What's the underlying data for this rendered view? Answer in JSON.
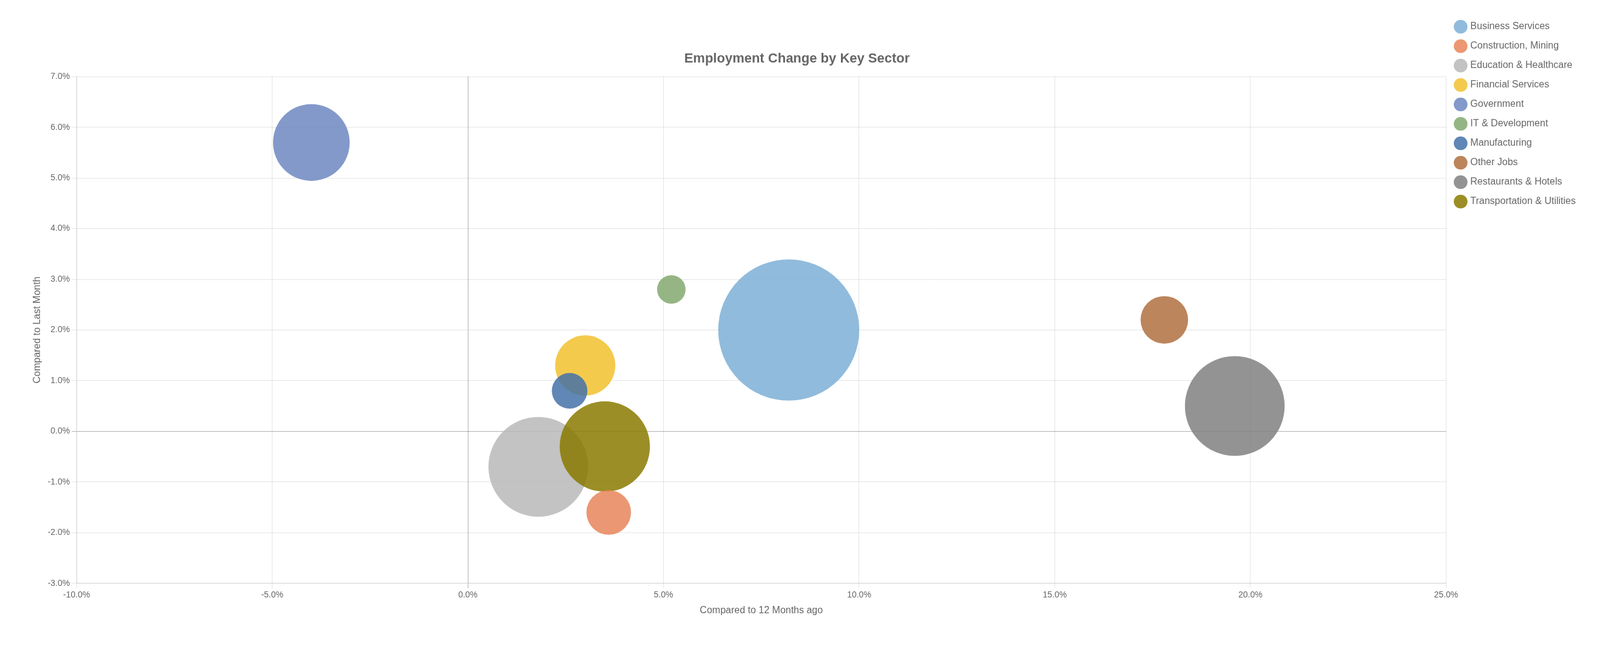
{
  "chart_data": {
    "type": "bubble",
    "title": "Employment Change by Key Sector",
    "xlabel": "Compared to 12 Months ago",
    "ylabel": "Compared to Last Month",
    "xlim": [
      -0.1,
      0.25
    ],
    "ylim": [
      -0.03,
      0.07
    ],
    "xticks": [
      {
        "value": -0.1,
        "label": "-10.0%"
      },
      {
        "value": -0.05,
        "label": "-5.0%"
      },
      {
        "value": 0.0,
        "label": "0.0%"
      },
      {
        "value": 0.05,
        "label": "5.0%"
      },
      {
        "value": 0.1,
        "label": "10.0%"
      },
      {
        "value": 0.15,
        "label": "15.0%"
      },
      {
        "value": 0.2,
        "label": "20.0%"
      },
      {
        "value": 0.25,
        "label": "25.0%"
      }
    ],
    "yticks": [
      {
        "value": -0.03,
        "label": "-3.0%"
      },
      {
        "value": -0.02,
        "label": "-2.0%"
      },
      {
        "value": -0.01,
        "label": "-1.0%"
      },
      {
        "value": 0.0,
        "label": "0.0%"
      },
      {
        "value": 0.01,
        "label": "1.0%"
      },
      {
        "value": 0.02,
        "label": "2.0%"
      },
      {
        "value": 0.03,
        "label": "3.0%"
      },
      {
        "value": 0.04,
        "label": "4.0%"
      },
      {
        "value": 0.05,
        "label": "5.0%"
      },
      {
        "value": 0.06,
        "label": "6.0%"
      },
      {
        "value": 0.07,
        "label": "7.0%"
      }
    ],
    "grid": true,
    "legend": "right",
    "series": [
      {
        "name": "Business Services",
        "color": "#7cafd6",
        "x": [
          0.082
        ],
        "y": [
          0.02
        ],
        "size": [
          22000
        ]
      },
      {
        "name": "Construction, Mining",
        "color": "#e8855a",
        "x": [
          0.036
        ],
        "y": [
          -0.016
        ],
        "size": [
          2200
        ]
      },
      {
        "name": "Education & Healthcare",
        "color": "#b8b8b8",
        "x": [
          0.018
        ],
        "y": [
          -0.007
        ],
        "size": [
          11000
        ]
      },
      {
        "name": "Financial Services",
        "color": "#f2c12e",
        "x": [
          0.03
        ],
        "y": [
          0.013
        ],
        "size": [
          4000
        ]
      },
      {
        "name": "Government",
        "color": "#6d87c1",
        "x": [
          -0.04
        ],
        "y": [
          0.057
        ],
        "size": [
          6500
        ]
      },
      {
        "name": "IT & Development",
        "color": "#82a96e",
        "x": [
          0.052
        ],
        "y": [
          0.028
        ],
        "size": [
          900
        ]
      },
      {
        "name": "Manufacturing",
        "color": "#4472a8",
        "x": [
          0.026
        ],
        "y": [
          0.008
        ],
        "size": [
          1400
        ]
      },
      {
        "name": "Other Jobs",
        "color": "#b07040",
        "x": [
          0.178
        ],
        "y": [
          0.022
        ],
        "size": [
          2500
        ]
      },
      {
        "name": "Restaurants & Hotels",
        "color": "#808080",
        "x": [
          0.196
        ],
        "y": [
          0.005
        ],
        "size": [
          11000
        ]
      },
      {
        "name": "Transportation & Utilities",
        "color": "#8b7a00",
        "x": [
          0.035
        ],
        "y": [
          -0.003
        ],
        "size": [
          9000
        ]
      }
    ]
  }
}
